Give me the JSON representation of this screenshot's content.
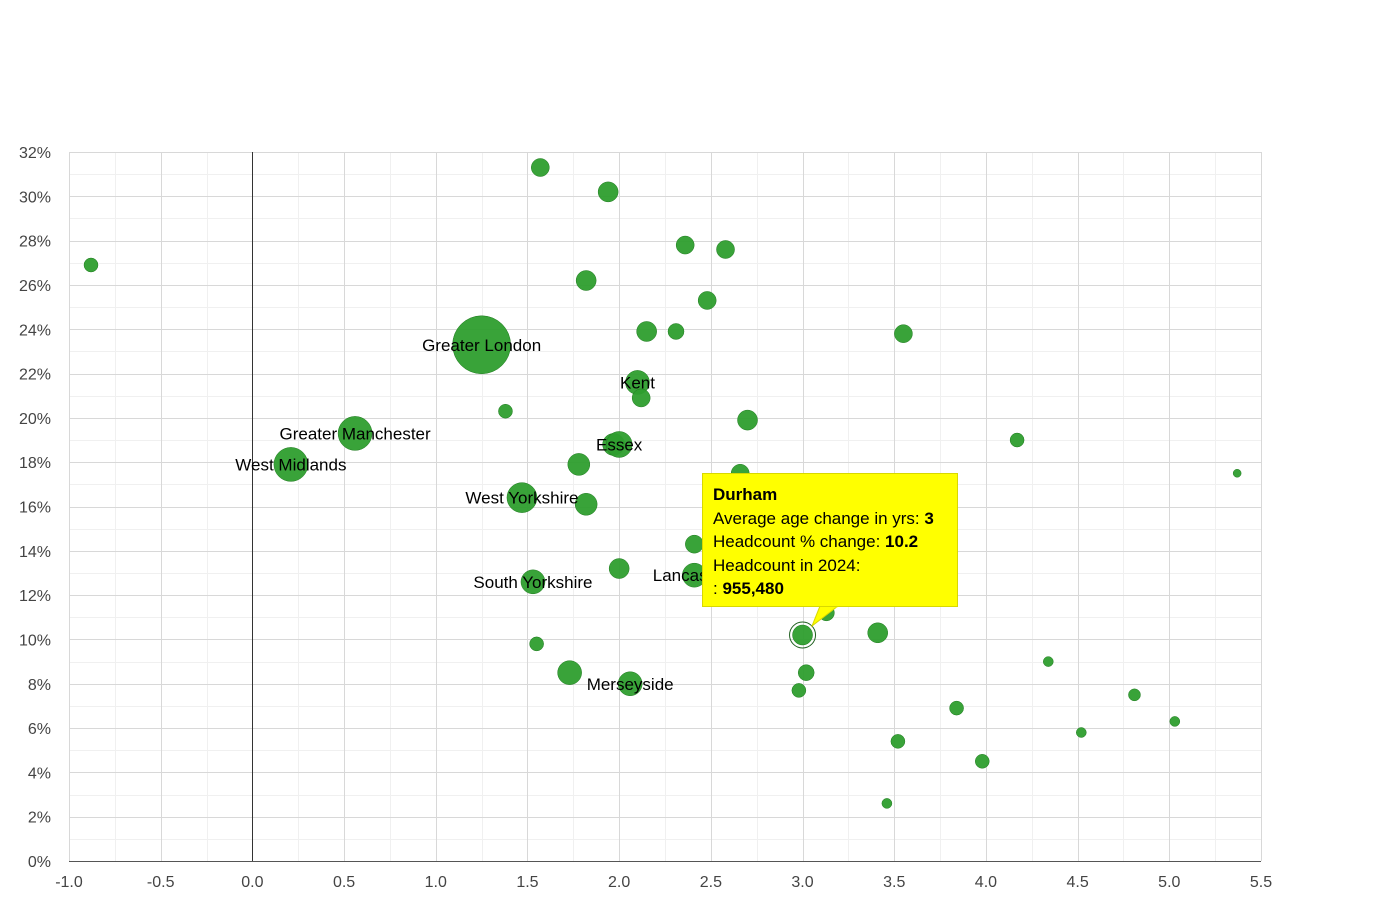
{
  "chart_data": {
    "type": "scatter",
    "bubble": true,
    "title": "",
    "xlabel": "",
    "ylabel": "",
    "xlim": [
      -1.0,
      5.5
    ],
    "ylim": [
      0,
      32
    ],
    "x_ticks": [
      "-1.0",
      "-0.5",
      "0.0",
      "0.5",
      "1.0",
      "1.5",
      "2.0",
      "2.5",
      "3.0",
      "3.5",
      "4.0",
      "4.5",
      "5.0",
      "5.5"
    ],
    "y_ticks": [
      "0%",
      "2%",
      "4%",
      "6%",
      "8%",
      "10%",
      "12%",
      "14%",
      "16%",
      "18%",
      "20%",
      "22%",
      "24%",
      "26%",
      "28%",
      "30%",
      "32%"
    ],
    "grid": true,
    "colors": {
      "bubble": "#2e9e2e",
      "bubble_edge": "#1f7a1f",
      "tooltip_bg": "#ffff00"
    },
    "points": [
      {
        "x": -0.88,
        "y": 26.9,
        "r": 7
      },
      {
        "x": 0.21,
        "y": 17.9,
        "r": 17,
        "label": "West Midlands"
      },
      {
        "x": 0.56,
        "y": 19.3,
        "r": 17,
        "label": "Greater Manchester"
      },
      {
        "x": 1.25,
        "y": 23.3,
        "r": 29,
        "label": "Greater London"
      },
      {
        "x": 1.38,
        "y": 20.3,
        "r": 7
      },
      {
        "x": 1.47,
        "y": 16.4,
        "r": 15,
        "label": "West Yorkshire"
      },
      {
        "x": 1.53,
        "y": 12.6,
        "r": 12,
        "label": "South Yorkshire"
      },
      {
        "x": 1.55,
        "y": 9.8,
        "r": 7
      },
      {
        "x": 1.57,
        "y": 31.3,
        "r": 9
      },
      {
        "x": 1.73,
        "y": 8.5,
        "r": 12
      },
      {
        "x": 1.78,
        "y": 17.9,
        "r": 11
      },
      {
        "x": 1.82,
        "y": 26.2,
        "r": 10
      },
      {
        "x": 1.82,
        "y": 16.1,
        "r": 11
      },
      {
        "x": 1.94,
        "y": 30.2,
        "r": 10
      },
      {
        "x": 1.97,
        "y": 18.8,
        "r": 11
      },
      {
        "x": 2.0,
        "y": 18.8,
        "r": 13,
        "label": "Essex"
      },
      {
        "x": 2.0,
        "y": 13.2,
        "r": 10
      },
      {
        "x": 2.06,
        "y": 8.0,
        "r": 12,
        "label": "Merseyside"
      },
      {
        "x": 2.1,
        "y": 21.6,
        "r": 12,
        "label": "Kent"
      },
      {
        "x": 2.12,
        "y": 20.9,
        "r": 9
      },
      {
        "x": 2.15,
        "y": 23.9,
        "r": 10
      },
      {
        "x": 2.31,
        "y": 23.9,
        "r": 8
      },
      {
        "x": 2.36,
        "y": 27.8,
        "r": 9
      },
      {
        "x": 2.41,
        "y": 14.3,
        "r": 9
      },
      {
        "x": 2.41,
        "y": 12.9,
        "r": 12,
        "label": "Lancashire"
      },
      {
        "x": 2.48,
        "y": 25.3,
        "r": 9
      },
      {
        "x": 2.58,
        "y": 27.6,
        "r": 9
      },
      {
        "x": 2.66,
        "y": 17.5,
        "r": 9
      },
      {
        "x": 2.7,
        "y": 19.9,
        "r": 10
      },
      {
        "x": 2.98,
        "y": 7.7,
        "r": 7
      },
      {
        "x": 3.0,
        "y": 10.2,
        "r": 10
      },
      {
        "x": 3.02,
        "y": 8.5,
        "r": 8
      },
      {
        "x": 3.13,
        "y": 11.2,
        "r": 8
      },
      {
        "x": 3.41,
        "y": 10.3,
        "r": 10
      },
      {
        "x": 3.46,
        "y": 2.6,
        "r": 5
      },
      {
        "x": 3.52,
        "y": 5.4,
        "r": 7
      },
      {
        "x": 3.55,
        "y": 23.8,
        "r": 9
      },
      {
        "x": 3.84,
        "y": 6.9,
        "r": 7
      },
      {
        "x": 3.98,
        "y": 4.5,
        "r": 7
      },
      {
        "x": 4.17,
        "y": 19.0,
        "r": 7
      },
      {
        "x": 4.34,
        "y": 9.0,
        "r": 5
      },
      {
        "x": 4.52,
        "y": 5.8,
        "r": 5
      },
      {
        "x": 4.81,
        "y": 7.5,
        "r": 6
      },
      {
        "x": 5.03,
        "y": 6.3,
        "r": 5
      },
      {
        "x": 5.37,
        "y": 17.5,
        "r": 4
      }
    ],
    "highlight_index": 30,
    "tooltip": {
      "title": "Durham",
      "line1_label": "Average age change in yrs:",
      "line1_value": "3",
      "line2_label": "Headcount % change:",
      "line2_value": "10.2",
      "line3_label": "Headcount in 2024:",
      "line4_prefix": ":",
      "line4_value": "955,480"
    }
  }
}
